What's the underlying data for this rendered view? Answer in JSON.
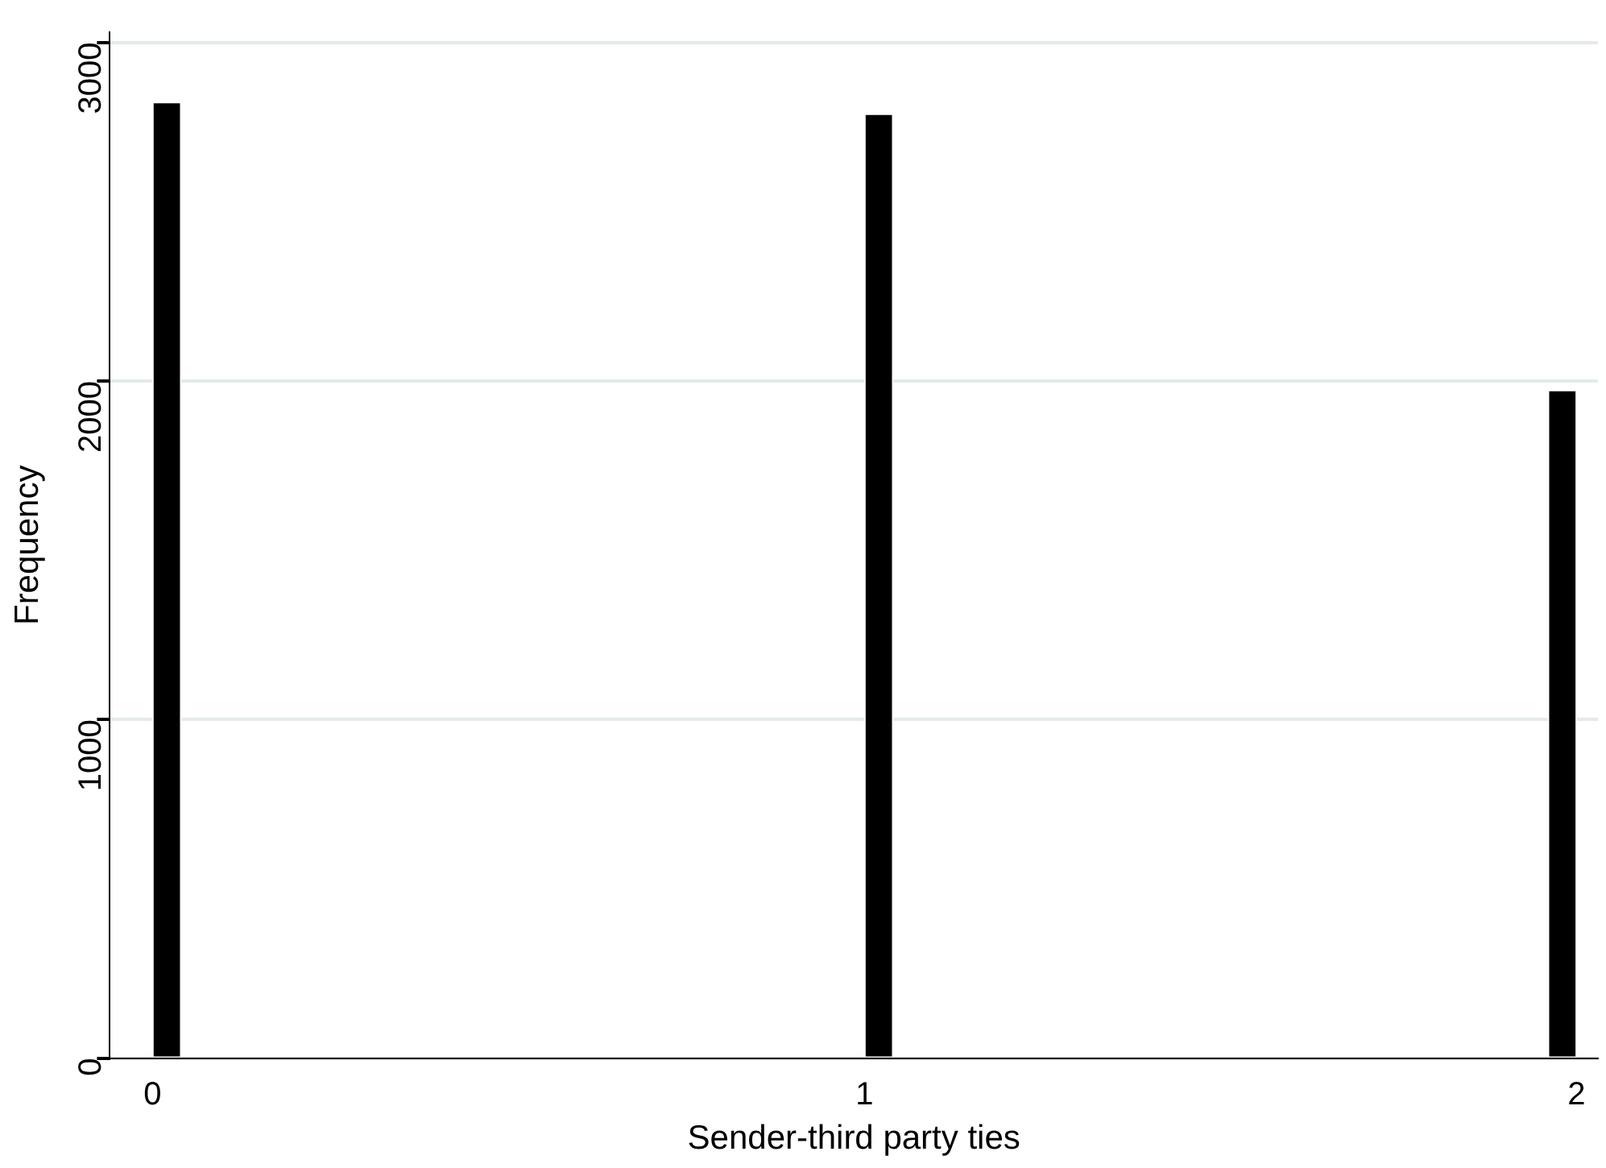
{
  "chart_data": {
    "type": "histogram",
    "xlabel": "Sender-third party ties",
    "ylabel": "Frequency",
    "bins": [
      0,
      0.04,
      1,
      1.04,
      1.96,
      2
    ],
    "values": [
      2823,
      0,
      2789,
      0,
      1973
    ],
    "color": "#000000",
    "xlim": [
      -0.06,
      2.03
    ],
    "xticks": [
      0,
      1,
      2
    ],
    "ylim": [
      0,
      3030
    ],
    "yticks": [
      0,
      1000,
      2000,
      3000
    ],
    "grid": "y",
    "legend": false
  }
}
